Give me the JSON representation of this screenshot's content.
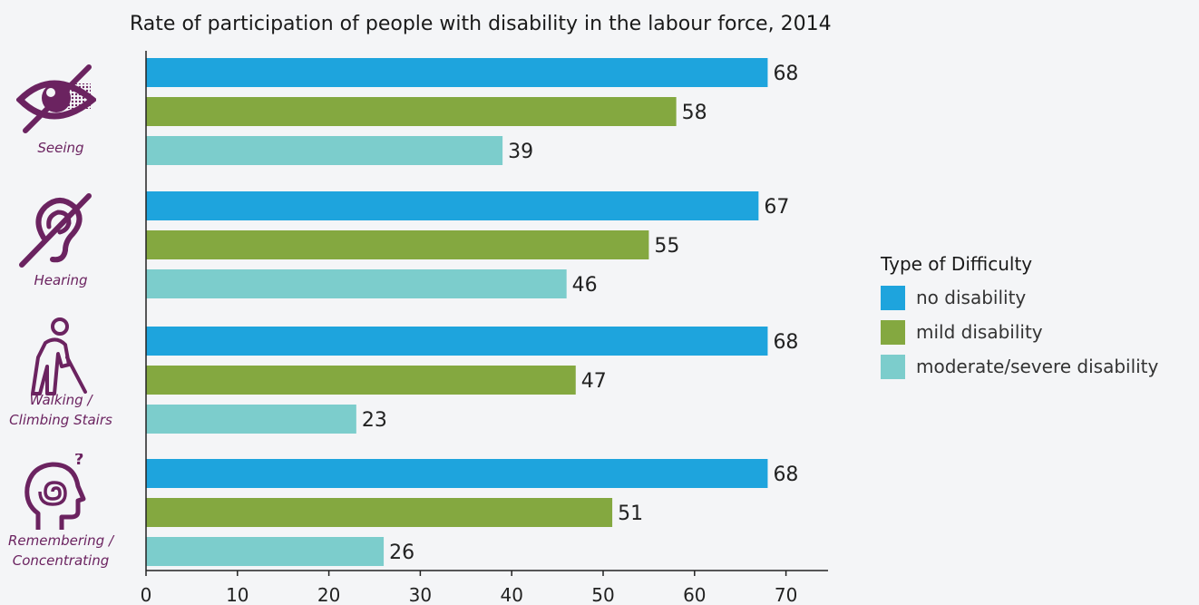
{
  "chart_data": {
    "type": "bar",
    "orientation": "horizontal",
    "title": "Rate of participation of people with disability in the labour force, 2014",
    "categories": [
      {
        "lines": [
          "Seeing"
        ],
        "icon": "eye-slash-icon"
      },
      {
        "lines": [
          "Hearing"
        ],
        "icon": "ear-slash-icon"
      },
      {
        "lines": [
          "Walking /",
          "Climbing Stairs"
        ],
        "icon": "elderly-person-cane-icon"
      },
      {
        "lines": [
          "Remembering /",
          "Concentrating"
        ],
        "icon": "head-spiral-question-icon"
      }
    ],
    "series": [
      {
        "name": "no disability",
        "color": "#1ea4dd",
        "values": [
          68,
          67,
          68,
          68
        ]
      },
      {
        "name": "mild disability",
        "color": "#84a840",
        "values": [
          58,
          55,
          47,
          51
        ]
      },
      {
        "name": "moderate/severe disability",
        "color": "#7ccdcc",
        "values": [
          39,
          46,
          23,
          26
        ]
      }
    ],
    "xlim": [
      0,
      75
    ],
    "xticks": [
      "0",
      "10",
      "20",
      "30",
      "40",
      "50",
      "60",
      "70"
    ],
    "legend": {
      "title": "Type of Difficulty",
      "position": "right"
    },
    "grid": false
  }
}
